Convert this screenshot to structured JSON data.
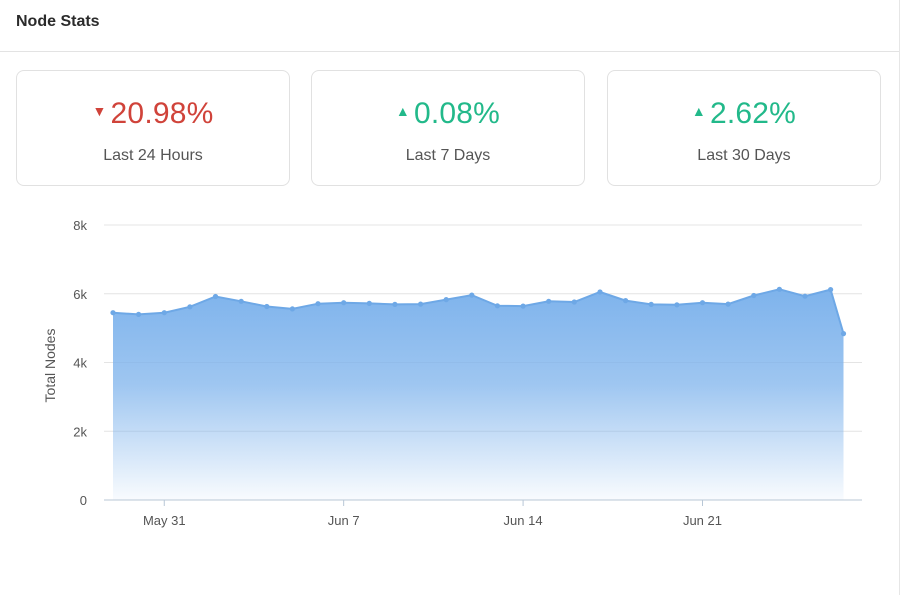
{
  "header": {
    "title": "Node Stats"
  },
  "stats": [
    {
      "value": "20.98%",
      "label": "Last 24 Hours",
      "direction": "down",
      "arrow": "▼",
      "color": "#d0433a"
    },
    {
      "value": "0.08%",
      "label": "Last 7 Days",
      "direction": "up",
      "arrow": "▲",
      "color": "#22b98a"
    },
    {
      "value": "2.62%",
      "label": "Last 30 Days",
      "direction": "up",
      "arrow": "▲",
      "color": "#22b98a"
    }
  ],
  "chart_data": {
    "type": "area",
    "ylabel": "Total Nodes",
    "xlabel": "",
    "ylim": [
      0,
      8000
    ],
    "y_ticks": [
      {
        "value": 0,
        "label": "0"
      },
      {
        "value": 2000,
        "label": "2k"
      },
      {
        "value": 4000,
        "label": "4k"
      },
      {
        "value": 6000,
        "label": "6k"
      },
      {
        "value": 8000,
        "label": "8k"
      }
    ],
    "x_ticks": [
      "May 31",
      "Jun 7",
      "Jun 14",
      "Jun 21"
    ],
    "x_start": "May 29",
    "x_end": "Jun 26",
    "grid": true,
    "line_color": "#6ea8e6",
    "fill_color": "#7eb3ec",
    "series": [
      {
        "x": [
          "May 29",
          "May 30",
          "May 31",
          "Jun 1",
          "Jun 2",
          "Jun 3",
          "Jun 4",
          "Jun 5",
          "Jun 6",
          "Jun 7",
          "Jun 8",
          "Jun 9",
          "Jun 10",
          "Jun 11",
          "Jun 12",
          "Jun 13",
          "Jun 14",
          "Jun 15",
          "Jun 16",
          "Jun 17",
          "Jun 18",
          "Jun 19",
          "Jun 20",
          "Jun 21",
          "Jun 22",
          "Jun 23",
          "Jun 24",
          "Jun 25",
          "Jun 26"
        ],
        "values": [
          5450,
          5400,
          5450,
          5620,
          5920,
          5780,
          5630,
          5560,
          5710,
          5740,
          5720,
          5690,
          5700,
          5830,
          5960,
          5650,
          5640,
          5780,
          5760,
          6050,
          5800,
          5690,
          5680,
          5740,
          5700,
          5950,
          6130,
          5930,
          6120
        ]
      }
    ],
    "last_point": {
      "x": "Jun 26.5",
      "value": 4840
    }
  }
}
